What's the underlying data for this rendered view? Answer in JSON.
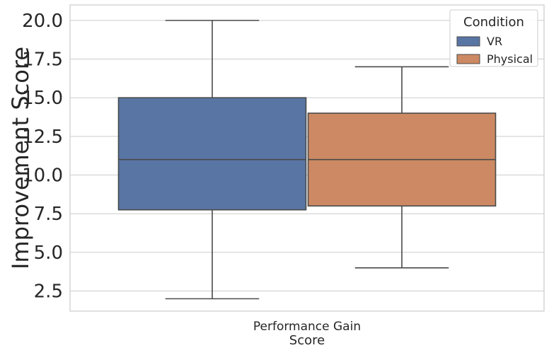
{
  "chart_data": {
    "type": "box",
    "title": "",
    "xlabel": "Score",
    "ylabel": "Improvement Score",
    "categories": [
      "Performance Gain"
    ],
    "ylim": [
      1.2,
      21.0
    ],
    "yticks": [
      "2.5",
      "5.0",
      "7.5",
      "10.0",
      "12.5",
      "15.0",
      "17.5",
      "20.0"
    ],
    "grid": "horizontal",
    "legend": {
      "title": "Condition",
      "placement": "top-right"
    },
    "series": [
      {
        "name": "VR",
        "color": "#5875a4",
        "min": 2,
        "q1": 7.75,
        "median": 11,
        "q3": 15,
        "max": 20
      },
      {
        "name": "Physical",
        "color": "#cc8963",
        "min": 4,
        "q1": 8,
        "median": 11,
        "q3": 14,
        "max": 17
      }
    ]
  }
}
